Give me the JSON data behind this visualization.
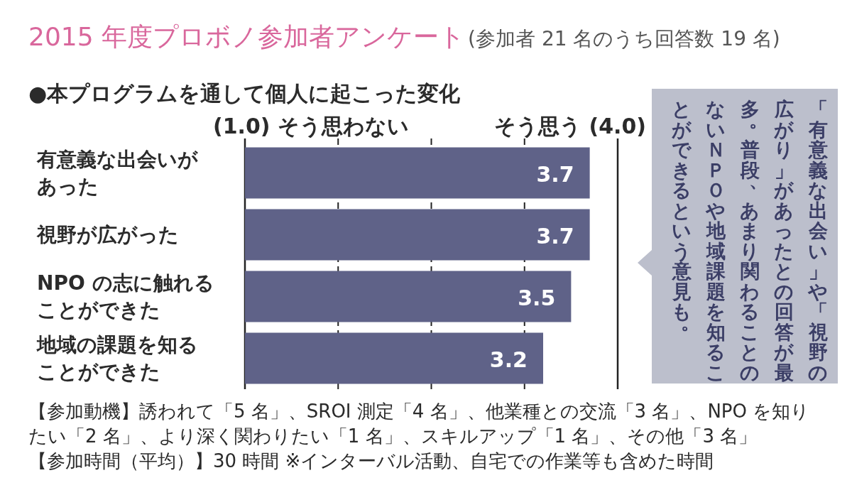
{
  "chart_data": {
    "type": "bar",
    "orientation": "horizontal",
    "title": "2015 年度プロボノ参加者アンケート",
    "subtitle": "(参加者 21 名のうち回答数 19 名)",
    "categories": [
      "有意義な出会いがあった",
      "視野が広がった",
      "NPO の志に触れることができた",
      "地域の課題を知ることができた"
    ],
    "values": [
      3.7,
      3.7,
      3.5,
      3.2
    ],
    "color": "#5f6288",
    "data_labels": true,
    "xlim": [
      0,
      4
    ],
    "xticks": [
      {
        "value": 1,
        "label": null
      },
      {
        "value": 2,
        "label": null
      },
      {
        "value": 3,
        "label": null
      }
    ],
    "grid": "x",
    "ref_lines": [
      {
        "axis": "x",
        "value": 4,
        "label": "そう思う (4.0)",
        "line_style": "solid"
      }
    ],
    "annotations": [
      "●本プログラムを通して個人に起こった変化",
      "(1.0) そう思わない",
      "「有意義な出会い」や「視野の広がり」があったとの回答が最多。普段、あまり関わることのないＮＰＯや地域課題を知ることができるという意見も。",
      "【参加動機】誘われて「5 名」、SROI 測定「4 名」、他業種との交流「3 名」、NPO を知りたい「2 名」、より深く関わりたい「1 名」、スキルアップ「1 名」、その他「3 名」",
      "【参加時間（平均）】30 時間 ※インターバル活動、自宅での作業等も含めた時間"
    ]
  }
}
